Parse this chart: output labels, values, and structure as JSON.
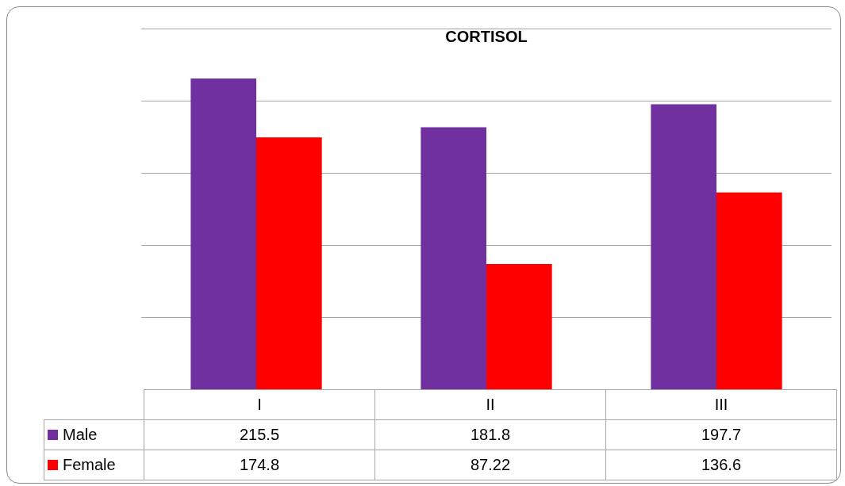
{
  "chart_data": {
    "type": "bar",
    "title": "CORTISOL",
    "categories": [
      "I",
      "II",
      "III"
    ],
    "series": [
      {
        "name": "Male",
        "color": "#7030a0",
        "values": [
          215.5,
          181.8,
          197.7
        ]
      },
      {
        "name": "Female",
        "color": "#ff0000",
        "values": [
          174.8,
          87.22,
          136.6
        ]
      }
    ],
    "ylim": [
      0,
      250
    ],
    "yticks": [
      {
        "value": 50,
        "label": null
      },
      {
        "value": 100,
        "label": null
      },
      {
        "value": 150,
        "label": null
      },
      {
        "value": 200,
        "label": null
      },
      {
        "value": 250,
        "label": null
      }
    ],
    "grid": "y",
    "tick_labels": "x",
    "data_labels": true,
    "legend": "bottom left"
  }
}
